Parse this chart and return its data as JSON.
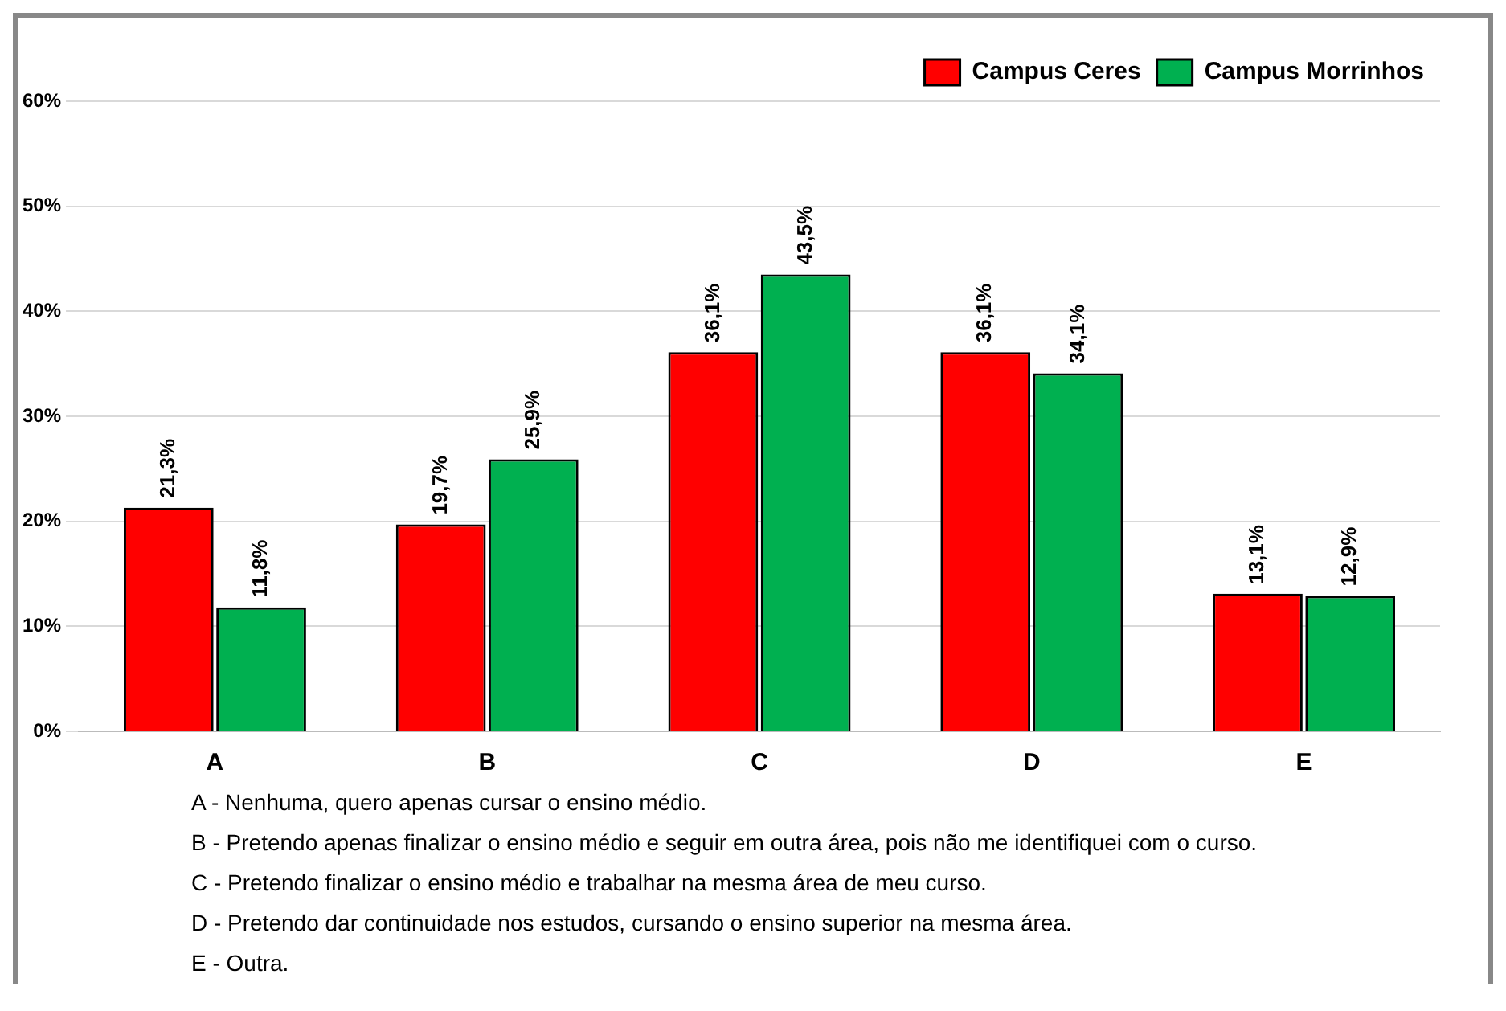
{
  "chart_data": {
    "type": "bar",
    "categories": [
      "A",
      "B",
      "C",
      "D",
      "E"
    ],
    "series": [
      {
        "name": "Campus Ceres",
        "color": "#ff0000",
        "values": [
          21.3,
          19.7,
          36.1,
          36.1,
          13.1
        ],
        "value_labels": [
          "21,3%",
          "19,7%",
          "36,1%",
          "36,1%",
          "13,1%"
        ]
      },
      {
        "name": "Campus Morrinhos",
        "color": "#00b050",
        "values": [
          11.8,
          25.9,
          43.5,
          34.1,
          12.9
        ],
        "value_labels": [
          "11,8%",
          "25,9%",
          "43,5%",
          "34,1%",
          "12,9%"
        ]
      }
    ],
    "ylim": [
      0,
      60
    ],
    "yticks": [
      {
        "value": 0,
        "label": "0%"
      },
      {
        "value": 10,
        "label": "10%"
      },
      {
        "value": 20,
        "label": "20%"
      },
      {
        "value": 30,
        "label": "30%"
      },
      {
        "value": 40,
        "label": "40%"
      },
      {
        "value": 50,
        "label": "50%"
      },
      {
        "value": 60,
        "label": "60%"
      }
    ],
    "grid": "y",
    "legend": "top right",
    "annotations": [
      "A - Nenhuma, quero apenas cursar o ensino médio.",
      "B - Pretendo apenas finalizar o ensino médio e seguir em outra área, pois não me identifiquei com o curso.",
      "C - Pretendo finalizar o ensino médio e trabalhar na mesma área de meu curso.",
      "D - Pretendo dar continuidade nos estudos, cursando o ensino superior na mesma área.",
      "E - Outra."
    ]
  }
}
